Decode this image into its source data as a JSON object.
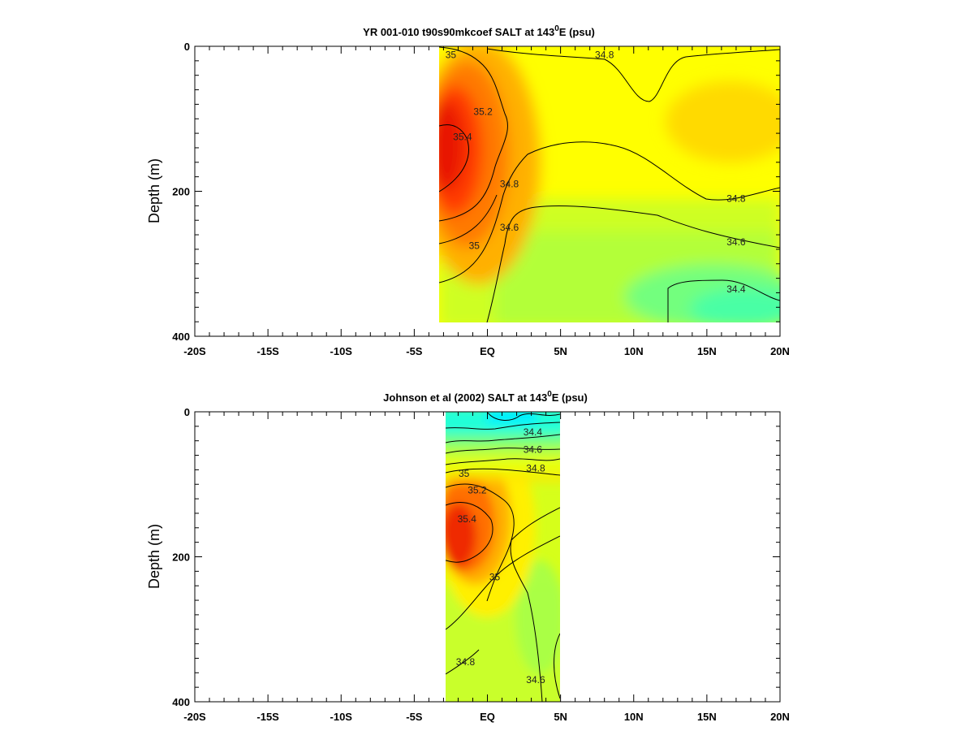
{
  "chart_data": [
    {
      "type": "heatmap",
      "title_main": "YR 001-010 t90s90mkcoef SALT at 143",
      "title_sup": "0",
      "title_tail": "E (psu)",
      "ylabel": "Depth (m)",
      "xlabel": "",
      "xticks": [
        "-20S",
        "-15S",
        "-10S",
        "-5S",
        "EQ",
        "5N",
        "10N",
        "15N",
        "20N"
      ],
      "xtick_values": [
        -20,
        -15,
        -10,
        -5,
        0,
        5,
        10,
        15,
        20
      ],
      "yticks": [
        "0",
        "200",
        "400"
      ],
      "ytick_values": [
        0,
        200,
        400
      ],
      "xlim": [
        -20,
        20
      ],
      "ylim": [
        400,
        0
      ],
      "data_extent": {
        "lat": [
          -3.3,
          20
        ],
        "depth": [
          0,
          380
        ]
      },
      "colormap": "jet_salinity",
      "color_range": [
        34.2,
        35.6
      ],
      "contour_labels": [
        {
          "text": "35",
          "lat": -2.5,
          "depth": 12
        },
        {
          "text": "34.8",
          "lat": 8,
          "depth": 12
        },
        {
          "text": "35.2",
          "lat": -0.3,
          "depth": 90
        },
        {
          "text": "35.4",
          "lat": -1.7,
          "depth": 125
        },
        {
          "text": "34.8",
          "lat": 1.5,
          "depth": 190
        },
        {
          "text": "34.8",
          "lat": 17,
          "depth": 210
        },
        {
          "text": "34.6",
          "lat": 1.5,
          "depth": 250
        },
        {
          "text": "35",
          "lat": -0.9,
          "depth": 275
        },
        {
          "text": "34.6",
          "lat": 17,
          "depth": 270
        },
        {
          "text": "34.4",
          "lat": 17,
          "depth": 335
        }
      ]
    },
    {
      "type": "heatmap",
      "title_main": "Johnson et al (2002) SALT at 143",
      "title_sup": "0",
      "title_tail": "E (psu)",
      "ylabel": "Depth (m)",
      "xlabel": "",
      "xticks": [
        "-20S",
        "-15S",
        "-10S",
        "-5S",
        "EQ",
        "5N",
        "10N",
        "15N",
        "20N"
      ],
      "xtick_values": [
        -20,
        -15,
        -10,
        -5,
        0,
        5,
        10,
        15,
        20
      ],
      "yticks": [
        "0",
        "200",
        "400"
      ],
      "ytick_values": [
        0,
        200,
        400
      ],
      "xlim": [
        -20,
        20
      ],
      "ylim": [
        400,
        0
      ],
      "data_extent": {
        "lat": [
          -2.8,
          5
        ],
        "depth": [
          0,
          400
        ]
      },
      "colormap": "jet_salinity",
      "color_range": [
        34.2,
        35.6
      ],
      "contour_labels": [
        {
          "text": "34.4",
          "lat": 3.1,
          "depth": 28
        },
        {
          "text": "34.6",
          "lat": 3.1,
          "depth": 52
        },
        {
          "text": "34.8",
          "lat": 3.3,
          "depth": 78
        },
        {
          "text": "35",
          "lat": -1.6,
          "depth": 85
        },
        {
          "text": "35.2",
          "lat": -0.7,
          "depth": 108
        },
        {
          "text": "35.4",
          "lat": -1.4,
          "depth": 148
        },
        {
          "text": "35",
          "lat": 0.5,
          "depth": 228
        },
        {
          "text": "34.8",
          "lat": -1.5,
          "depth": 345
        },
        {
          "text": "34.6",
          "lat": 3.3,
          "depth": 370
        }
      ]
    }
  ]
}
